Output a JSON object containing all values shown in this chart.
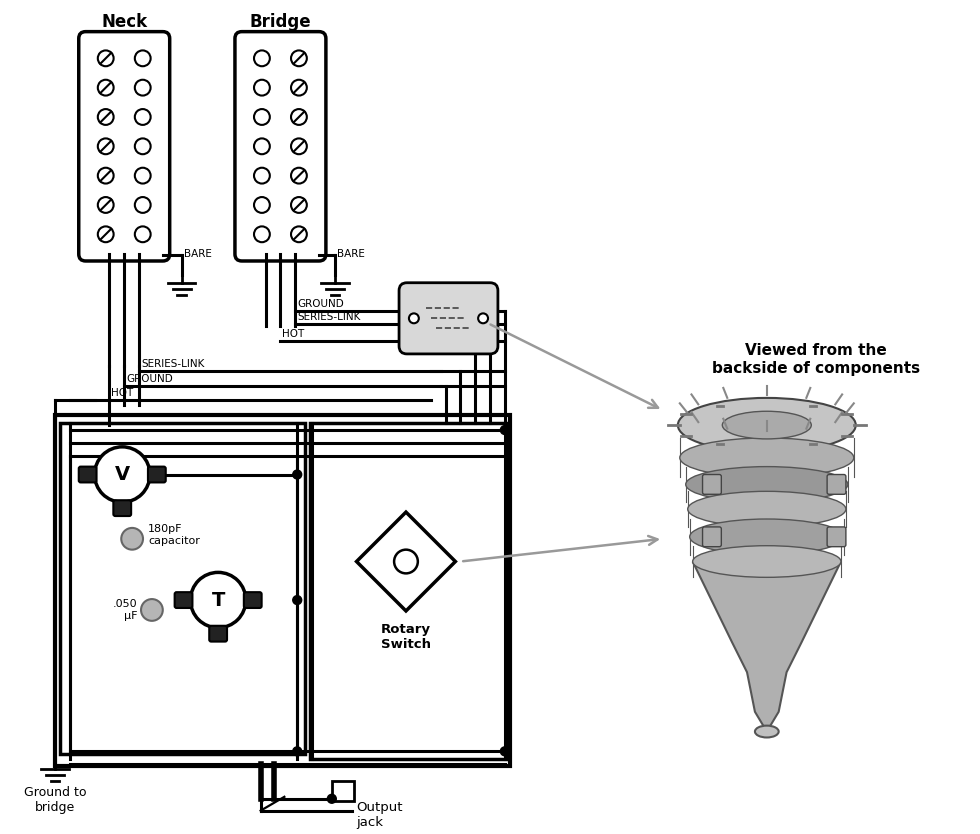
{
  "bg_color": "#ffffff",
  "black": "#000000",
  "gray": "#999999",
  "dark_gray": "#555555",
  "mid_gray": "#888888",
  "light_gray": "#cccccc",
  "neck_label": "Neck",
  "bridge_label": "Bridge",
  "viewed_line1": "Viewed from the",
  "viewed_line2": "backside of components",
  "ground_label": "Ground to\nbridge",
  "output_label": "Output\njack",
  "rotary_label": "Rotary\nSwitch",
  "cap1_label": "180pF\ncapacitor",
  "cap2_label": ".050\nμF",
  "bare_text": "BARE",
  "ground_text": "GROUND",
  "series_link_text": "SERIES-LINK",
  "hot_text": "HOT"
}
